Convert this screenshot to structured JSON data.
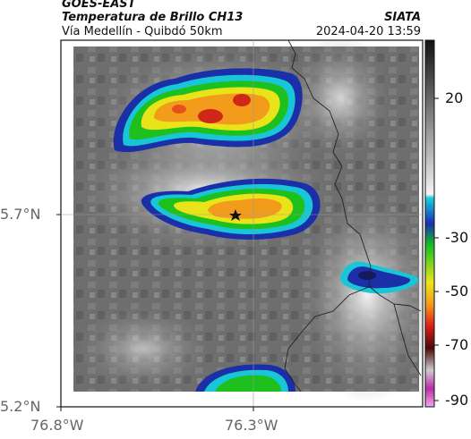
{
  "header": {
    "title": "GOES-EAST",
    "subtitle": "Temperatura de Brillo CH13",
    "route": "Vía Medellín - Quibdó 50km",
    "org": "SIATA",
    "timestamp": "2024-04-20 13:59"
  },
  "axes": {
    "lat_ticks": [
      "5.7°N",
      "5.2°N"
    ],
    "lon_ticks": [
      "76.8°W",
      "76.3°W"
    ]
  },
  "colorbar": {
    "ticks": [
      "20",
      "-30",
      "-50",
      "-70",
      "-90"
    ]
  },
  "marker": {
    "icon": "star-icon"
  },
  "colors": {
    "cold_red": "#d02818",
    "orange": "#f39c1c",
    "yellow": "#e9e41a",
    "green": "#1ec01e",
    "cyan": "#18c6d8",
    "blue": "#1a2fa8"
  }
}
